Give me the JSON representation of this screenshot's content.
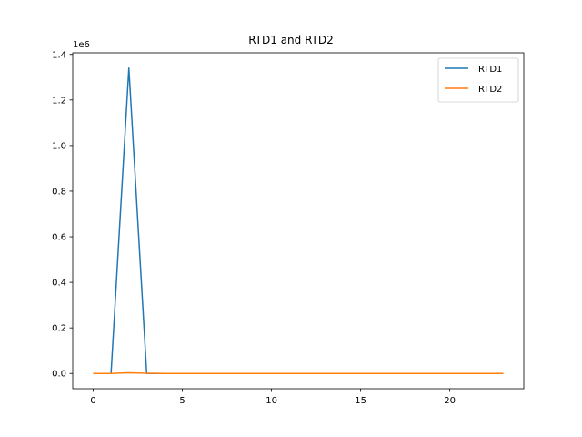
{
  "chart_data": {
    "type": "line",
    "title": "RTD1 and RTD2",
    "xlabel": "",
    "ylabel": "",
    "y_offset_text": "1e6",
    "xlim": [
      -1.15,
      24.15
    ],
    "ylim": [
      -0.067,
      1.407
    ],
    "x_ticks": [
      0,
      5,
      10,
      15,
      20
    ],
    "x_tick_labels": [
      "0",
      "5",
      "10",
      "15",
      "20"
    ],
    "y_ticks": [
      0.0,
      0.2,
      0.4,
      0.6,
      0.8,
      1.0,
      1.2,
      1.4
    ],
    "y_tick_labels": [
      "0.0",
      "0.2",
      "0.4",
      "0.6",
      "0.8",
      "1.0",
      "1.2",
      "1.4"
    ],
    "grid": false,
    "legend_position": "top-right",
    "x": [
      0,
      1,
      2,
      3,
      4,
      5,
      6,
      7,
      8,
      9,
      10,
      11,
      12,
      13,
      14,
      15,
      16,
      17,
      18,
      19,
      20,
      21,
      22,
      23
    ],
    "series": [
      {
        "name": "RTD1",
        "color": "#1f77b4",
        "values": [
          0,
          0,
          1.34,
          0,
          0,
          0,
          0,
          0,
          0,
          0,
          0,
          0,
          0,
          0,
          0,
          0,
          0,
          0,
          0,
          0,
          0,
          0,
          0,
          0
        ]
      },
      {
        "name": "RTD2",
        "color": "#ff7f0e",
        "values": [
          0,
          0,
          0.003,
          0.001,
          0,
          0,
          0,
          0,
          0,
          0,
          0,
          0,
          0,
          0,
          0,
          0,
          0,
          0,
          0,
          0,
          0,
          0,
          0,
          0
        ]
      }
    ]
  }
}
